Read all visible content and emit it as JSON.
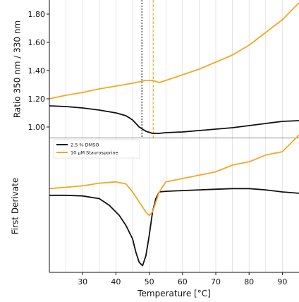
{
  "chart_data": [
    {
      "type": "line",
      "ylabel": "Ratio 350 nm / 330 nm",
      "xlim": [
        20,
        95
      ],
      "ylim": [
        0.92,
        1.9
      ],
      "yticks": [
        1.0,
        1.2,
        1.4,
        1.6,
        1.8
      ],
      "ytick_labels": [
        "1.00",
        "1.20",
        "1.40",
        "1.60",
        "1.80"
      ],
      "grid": "vertical",
      "vlines": [
        {
          "x": 47.8,
          "color": "#111111",
          "style": "dotted"
        },
        {
          "x": 51.2,
          "color": "#F5A623",
          "style": "dashed"
        }
      ],
      "series": [
        {
          "name": "2.5 % DMSO",
          "color": "#111111",
          "x": [
            20,
            25,
            30,
            35,
            40,
            43,
            45,
            47,
            49,
            51,
            53,
            55,
            60,
            65,
            70,
            75,
            80,
            85,
            90,
            95
          ],
          "values": [
            1.15,
            1.145,
            1.135,
            1.12,
            1.1,
            1.08,
            1.05,
            1.0,
            0.97,
            0.955,
            0.955,
            0.96,
            0.965,
            0.975,
            0.985,
            0.995,
            1.01,
            1.025,
            1.04,
            1.045
          ]
        },
        {
          "name": "10 µM Staurosporine",
          "color": "#F5A623",
          "x": [
            20,
            25,
            30,
            35,
            40,
            45,
            49,
            51,
            53,
            55,
            60,
            65,
            70,
            75,
            80,
            85,
            90,
            95
          ],
          "values": [
            1.2,
            1.225,
            1.245,
            1.27,
            1.29,
            1.31,
            1.33,
            1.33,
            1.315,
            1.33,
            1.37,
            1.41,
            1.46,
            1.51,
            1.58,
            1.67,
            1.76,
            1.88
          ]
        }
      ]
    },
    {
      "type": "line",
      "xlabel": "Temperature [°C]",
      "ylabel": "First Derivate",
      "xlim": [
        20,
        95
      ],
      "xticks": [
        30,
        40,
        50,
        60,
        70,
        80,
        90
      ],
      "xtick_labels": [
        "30",
        "40",
        "50",
        "60",
        "70",
        "80",
        "90"
      ],
      "ylim": [
        -0.115,
        0.085
      ],
      "grid": "vertical",
      "legend": {
        "placement": "top-left",
        "entries": [
          "2.5 % DMSO",
          "10 µM Staurosporine"
        ]
      },
      "series": [
        {
          "name": "2.5 % DMSO",
          "color": "#111111",
          "x": [
            20,
            25,
            30,
            35,
            38,
            41,
            43,
            45,
            46,
            47,
            48,
            49,
            50,
            51,
            52,
            53,
            55,
            60,
            65,
            70,
            75,
            80,
            85,
            90,
            95
          ],
          "values": [
            0.0,
            0.0,
            -0.001,
            -0.005,
            -0.015,
            -0.03,
            -0.045,
            -0.065,
            -0.085,
            -0.1,
            -0.105,
            -0.09,
            -0.06,
            -0.025,
            -0.005,
            0.005,
            0.006,
            0.007,
            0.008,
            0.009,
            0.01,
            0.01,
            0.008,
            0.005,
            0.003
          ]
        },
        {
          "name": "10 µM Staurosporine",
          "color": "#F5A623",
          "x": [
            20,
            25,
            30,
            35,
            40,
            43,
            45,
            47,
            49,
            50,
            51,
            52,
            53,
            55,
            60,
            65,
            70,
            75,
            80,
            85,
            90,
            93,
            95
          ],
          "values": [
            0.01,
            0.012,
            0.014,
            0.018,
            0.02,
            0.017,
            0.005,
            -0.01,
            -0.025,
            -0.03,
            -0.025,
            -0.01,
            0.005,
            0.02,
            0.025,
            0.03,
            0.035,
            0.045,
            0.05,
            0.06,
            0.065,
            0.08,
            0.09
          ]
        }
      ]
    }
  ]
}
